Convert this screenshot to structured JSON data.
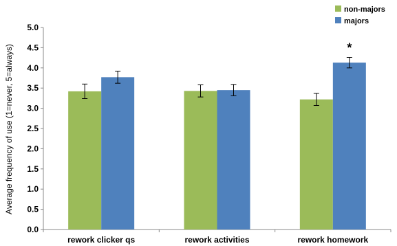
{
  "chart_data": {
    "type": "bar",
    "title": "",
    "xlabel": "",
    "ylabel": "Average frequency of use (1=never, 5=always)",
    "categories": [
      "rework clicker qs",
      "rework activities",
      "rework homework"
    ],
    "series": [
      {
        "name": "non-majors",
        "color": "#9BBB59",
        "values": [
          3.42,
          3.43,
          3.22
        ],
        "errors": [
          0.18,
          0.15,
          0.15
        ]
      },
      {
        "name": "majors",
        "color": "#4F81BD",
        "values": [
          3.77,
          3.45,
          4.13
        ],
        "errors": [
          0.15,
          0.14,
          0.13
        ]
      }
    ],
    "ylim": [
      0.0,
      5.0
    ],
    "yticks": [
      "0.0",
      "0.5",
      "1.0",
      "1.5",
      "2.0",
      "2.5",
      "3.0",
      "3.5",
      "4.0",
      "4.5",
      "5.0"
    ],
    "grid": false,
    "legend_position": "top-right",
    "annotations": [
      {
        "text": "*",
        "category_index": 2,
        "series_index": 1
      }
    ]
  }
}
